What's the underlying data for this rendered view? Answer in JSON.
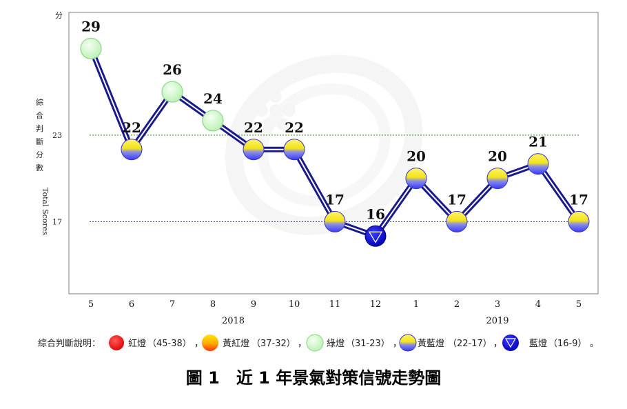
{
  "chart_data": {
    "type": "line",
    "title": "圖 1　近 1 年景氣對策信號走勢圖",
    "y_unit": "分",
    "ylabel_zh": [
      "綜",
      "合",
      "判",
      "斷",
      "分",
      "數"
    ],
    "ylabel_en": "Total Scores",
    "ylim": [
      12,
      31.5
    ],
    "y_ticks": [
      23,
      17
    ],
    "reference_lines": [
      {
        "value": 23,
        "color": "#2e8b2e"
      },
      {
        "value": 17,
        "color": "#2a2ab0"
      }
    ],
    "categories": [
      "5",
      "6",
      "7",
      "8",
      "9",
      "10",
      "11",
      "12",
      "1",
      "2",
      "3",
      "4",
      "5"
    ],
    "year_labels": [
      {
        "label": "2018",
        "center_index": 3.5
      },
      {
        "label": "2019",
        "center_index": 10
      }
    ],
    "values": [
      29,
      22,
      26,
      24,
      22,
      22,
      17,
      16,
      20,
      17,
      20,
      21,
      17
    ],
    "signals": [
      "green",
      "yellow-blue",
      "green",
      "green",
      "yellow-blue",
      "yellow-blue",
      "yellow-blue",
      "blue",
      "yellow-blue",
      "yellow-blue",
      "yellow-blue",
      "yellow-blue",
      "yellow-blue"
    ],
    "legend": {
      "prefix": "綜合判斷說明：",
      "items": [
        {
          "signal": "red",
          "name": "紅燈",
          "range": "（45-38）"
        },
        {
          "signal": "yellow-red",
          "name": "黃紅燈",
          "range": "（37-32）"
        },
        {
          "signal": "green",
          "name": "綠燈",
          "range": "（31-23）"
        },
        {
          "signal": "yellow-blue",
          "name": "黃藍燈",
          "range": "（22-17）"
        },
        {
          "signal": "blue",
          "name": "藍燈",
          "range": "（16-9）"
        }
      ],
      "separator": "，",
      "end": "。"
    },
    "colors": {
      "line": "#1a1a8c",
      "axis": "#7f7f7f"
    }
  }
}
